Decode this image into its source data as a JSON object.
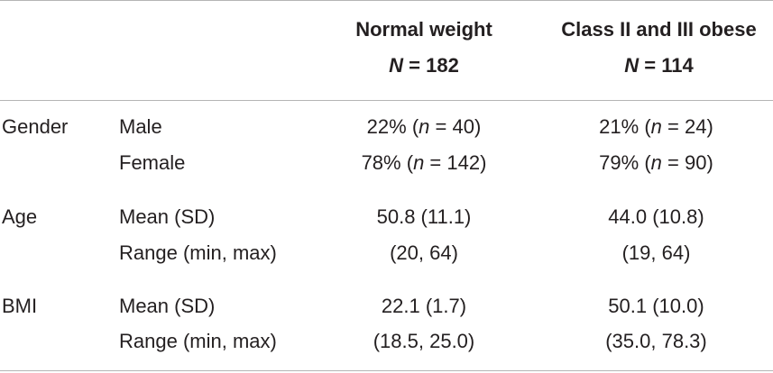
{
  "header": {
    "col1_title": "Normal weight",
    "col1_n_symbol": "N",
    "col1_n_value": "182",
    "col2_title": "Class II and III obese",
    "col2_n_symbol": "N",
    "col2_n_value": "114"
  },
  "rows": [
    {
      "category": "Gender",
      "label": "Male",
      "v1_main": "22%",
      "v1_n": "40",
      "v2_main": "21%",
      "v2_n": "24"
    },
    {
      "category": "",
      "label": "Female",
      "v1_main": "78%",
      "v1_n": "142",
      "v2_main": "79%",
      "v2_n": "90"
    },
    {
      "category": "Age",
      "label": "Mean (SD)",
      "v1": "50.8 (11.1)",
      "v2": "44.0 (10.8)"
    },
    {
      "category": "",
      "label": "Range (min, max)",
      "v1": "(20, 64)",
      "v2": "(19, 64)"
    },
    {
      "category": "BMI",
      "label": "Mean (SD)",
      "v1": "22.1 (1.7)",
      "v2": "50.1 (10.0)"
    },
    {
      "category": "",
      "label": "Range (min, max)",
      "v1": "(18.5, 25.0)",
      "v2": "(35.0, 78.3)"
    }
  ]
}
